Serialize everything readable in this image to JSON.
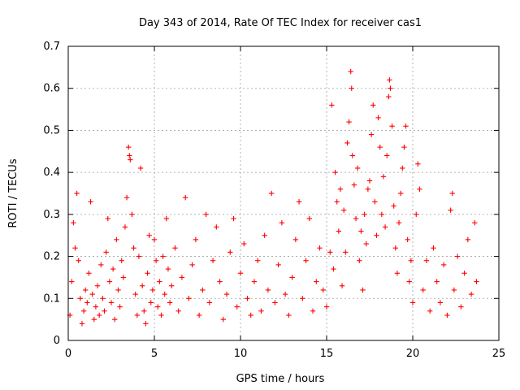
{
  "colors": {
    "series": "#ff0000",
    "grid": "#a0a0a0",
    "axis": "#000000",
    "background": "#ffffff"
  },
  "chart_data": {
    "type": "scatter",
    "title": "Day 343 of 2014, Rate Of TEC Index for receiver cas1",
    "xlabel": "GPS time / hours",
    "ylabel": "ROTI / TECUs",
    "xlim": [
      0,
      25
    ],
    "ylim": [
      0,
      0.7
    ],
    "xticks": [
      0,
      5,
      10,
      15,
      20,
      25
    ],
    "yticks": [
      0,
      0.1,
      0.2,
      0.3,
      0.4,
      0.5,
      0.6,
      0.7
    ],
    "xtick_labels": [
      "0",
      "5",
      "10",
      "15",
      "20",
      "25"
    ],
    "ytick_labels": [
      "0",
      "0.1",
      "0.2",
      "0.3",
      "0.4",
      "0.5",
      "0.6",
      "0.7"
    ],
    "grid": true,
    "marker": "+",
    "series": [
      {
        "name": "cas1 ROTI",
        "points": [
          [
            0.1,
            0.06
          ],
          [
            0.2,
            0.14
          ],
          [
            0.3,
            0.28
          ],
          [
            0.4,
            0.22
          ],
          [
            0.5,
            0.35
          ],
          [
            0.6,
            0.19
          ],
          [
            0.7,
            0.1
          ],
          [
            0.8,
            0.04
          ],
          [
            0.9,
            0.07
          ],
          [
            1.0,
            0.12
          ],
          [
            1.1,
            0.09
          ],
          [
            1.2,
            0.16
          ],
          [
            1.3,
            0.33
          ],
          [
            1.4,
            0.11
          ],
          [
            1.5,
            0.05
          ],
          [
            1.6,
            0.08
          ],
          [
            1.7,
            0.13
          ],
          [
            1.8,
            0.06
          ],
          [
            1.9,
            0.18
          ],
          [
            2.0,
            0.1
          ],
          [
            2.1,
            0.07
          ],
          [
            2.2,
            0.21
          ],
          [
            2.3,
            0.29
          ],
          [
            2.4,
            0.14
          ],
          [
            2.5,
            0.09
          ],
          [
            2.6,
            0.17
          ],
          [
            2.7,
            0.05
          ],
          [
            2.8,
            0.24
          ],
          [
            2.9,
            0.12
          ],
          [
            3.0,
            0.08
          ],
          [
            3.1,
            0.19
          ],
          [
            3.2,
            0.15
          ],
          [
            3.3,
            0.27
          ],
          [
            3.4,
            0.34
          ],
          [
            3.5,
            0.46
          ],
          [
            3.55,
            0.44
          ],
          [
            3.6,
            0.43
          ],
          [
            3.7,
            0.3
          ],
          [
            3.8,
            0.22
          ],
          [
            3.9,
            0.11
          ],
          [
            4.0,
            0.06
          ],
          [
            4.1,
            0.2
          ],
          [
            4.2,
            0.41
          ],
          [
            4.3,
            0.13
          ],
          [
            4.4,
            0.07
          ],
          [
            4.5,
            0.04
          ],
          [
            4.6,
            0.16
          ],
          [
            4.7,
            0.25
          ],
          [
            4.8,
            0.09
          ],
          [
            4.9,
            0.12
          ],
          [
            5.0,
            0.24
          ],
          [
            5.1,
            0.19
          ],
          [
            5.2,
            0.08
          ],
          [
            5.3,
            0.14
          ],
          [
            5.4,
            0.06
          ],
          [
            5.5,
            0.2
          ],
          [
            5.6,
            0.11
          ],
          [
            5.7,
            0.29
          ],
          [
            5.8,
            0.17
          ],
          [
            5.9,
            0.09
          ],
          [
            6.0,
            0.13
          ],
          [
            6.2,
            0.22
          ],
          [
            6.4,
            0.07
          ],
          [
            6.6,
            0.15
          ],
          [
            6.8,
            0.34
          ],
          [
            7.0,
            0.1
          ],
          [
            7.2,
            0.18
          ],
          [
            7.4,
            0.24
          ],
          [
            7.6,
            0.06
          ],
          [
            7.8,
            0.12
          ],
          [
            8.0,
            0.3
          ],
          [
            8.2,
            0.09
          ],
          [
            8.4,
            0.19
          ],
          [
            8.6,
            0.27
          ],
          [
            8.8,
            0.14
          ],
          [
            9.0,
            0.05
          ],
          [
            9.2,
            0.11
          ],
          [
            9.4,
            0.21
          ],
          [
            9.6,
            0.29
          ],
          [
            9.8,
            0.08
          ],
          [
            10.0,
            0.16
          ],
          [
            10.2,
            0.23
          ],
          [
            10.4,
            0.1
          ],
          [
            10.6,
            0.06
          ],
          [
            10.8,
            0.14
          ],
          [
            11.0,
            0.19
          ],
          [
            11.2,
            0.07
          ],
          [
            11.4,
            0.25
          ],
          [
            11.6,
            0.12
          ],
          [
            11.8,
            0.35
          ],
          [
            12.0,
            0.09
          ],
          [
            12.2,
            0.18
          ],
          [
            12.4,
            0.28
          ],
          [
            12.6,
            0.11
          ],
          [
            12.8,
            0.06
          ],
          [
            13.0,
            0.15
          ],
          [
            13.2,
            0.24
          ],
          [
            13.4,
            0.33
          ],
          [
            13.6,
            0.1
          ],
          [
            13.8,
            0.19
          ],
          [
            14.0,
            0.29
          ],
          [
            14.2,
            0.07
          ],
          [
            14.4,
            0.14
          ],
          [
            14.6,
            0.22
          ],
          [
            14.8,
            0.12
          ],
          [
            15.0,
            0.08
          ],
          [
            15.2,
            0.21
          ],
          [
            15.3,
            0.56
          ],
          [
            15.4,
            0.17
          ],
          [
            15.5,
            0.4
          ],
          [
            15.6,
            0.33
          ],
          [
            15.7,
            0.26
          ],
          [
            15.8,
            0.36
          ],
          [
            15.9,
            0.13
          ],
          [
            16.0,
            0.31
          ],
          [
            16.1,
            0.21
          ],
          [
            16.2,
            0.47
          ],
          [
            16.3,
            0.52
          ],
          [
            16.4,
            0.64
          ],
          [
            16.45,
            0.6
          ],
          [
            16.5,
            0.44
          ],
          [
            16.6,
            0.37
          ],
          [
            16.7,
            0.29
          ],
          [
            16.8,
            0.41
          ],
          [
            16.9,
            0.19
          ],
          [
            17.0,
            0.26
          ],
          [
            17.1,
            0.12
          ],
          [
            17.2,
            0.3
          ],
          [
            17.3,
            0.23
          ],
          [
            17.4,
            0.36
          ],
          [
            17.5,
            0.38
          ],
          [
            17.6,
            0.49
          ],
          [
            17.7,
            0.56
          ],
          [
            17.8,
            0.33
          ],
          [
            17.9,
            0.25
          ],
          [
            18.0,
            0.53
          ],
          [
            18.1,
            0.46
          ],
          [
            18.2,
            0.3
          ],
          [
            18.3,
            0.39
          ],
          [
            18.4,
            0.27
          ],
          [
            18.5,
            0.44
          ],
          [
            18.6,
            0.58
          ],
          [
            18.65,
            0.62
          ],
          [
            18.7,
            0.6
          ],
          [
            18.8,
            0.51
          ],
          [
            18.9,
            0.32
          ],
          [
            19.0,
            0.22
          ],
          [
            19.1,
            0.16
          ],
          [
            19.2,
            0.28
          ],
          [
            19.3,
            0.35
          ],
          [
            19.4,
            0.41
          ],
          [
            19.5,
            0.46
          ],
          [
            19.6,
            0.51
          ],
          [
            19.7,
            0.24
          ],
          [
            19.8,
            0.14
          ],
          [
            19.9,
            0.19
          ],
          [
            20.0,
            0.09
          ],
          [
            20.2,
            0.3
          ],
          [
            20.3,
            0.42
          ],
          [
            20.4,
            0.36
          ],
          [
            20.6,
            0.12
          ],
          [
            20.8,
            0.19
          ],
          [
            21.0,
            0.07
          ],
          [
            21.2,
            0.22
          ],
          [
            21.4,
            0.14
          ],
          [
            21.6,
            0.09
          ],
          [
            21.8,
            0.18
          ],
          [
            22.0,
            0.06
          ],
          [
            22.2,
            0.31
          ],
          [
            22.3,
            0.35
          ],
          [
            22.4,
            0.12
          ],
          [
            22.6,
            0.2
          ],
          [
            22.8,
            0.08
          ],
          [
            23.0,
            0.16
          ],
          [
            23.2,
            0.24
          ],
          [
            23.4,
            0.11
          ],
          [
            23.6,
            0.28
          ],
          [
            23.7,
            0.14
          ]
        ]
      }
    ]
  }
}
